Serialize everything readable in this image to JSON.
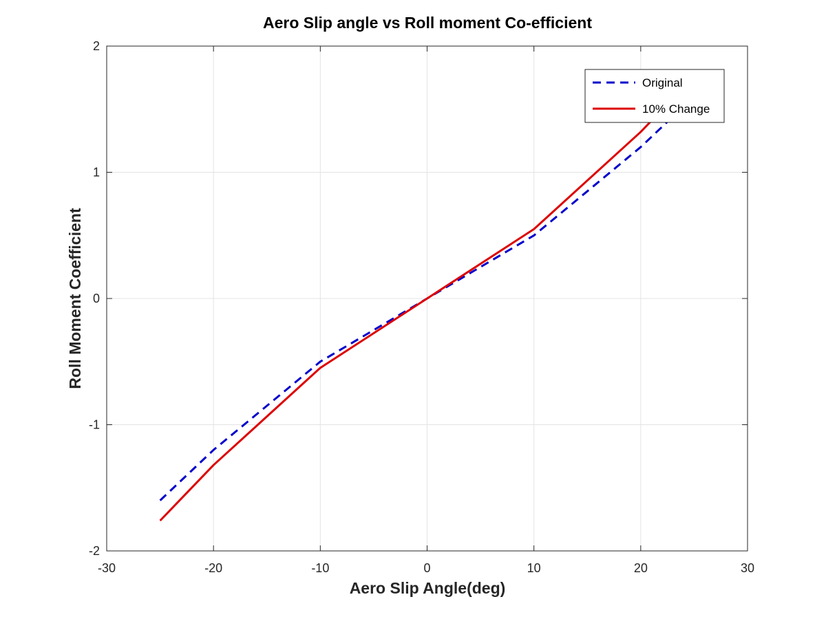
{
  "chart_data": {
    "type": "line",
    "title": "Aero Slip angle vs Roll moment Co-efficient",
    "xlabel": "Aero Slip Angle(deg)",
    "ylabel": "Roll Moment Coefficient",
    "xlim": [
      -30,
      30
    ],
    "ylim": [
      -2,
      2
    ],
    "xticks": [
      -30,
      -20,
      -10,
      0,
      10,
      20,
      30
    ],
    "yticks": [
      -2,
      -1,
      0,
      1,
      2
    ],
    "grid": true,
    "legend_position": "top-right",
    "series": [
      {
        "name": "Original",
        "style": "dashed",
        "color": "#0000cc",
        "x": [
          -25,
          -20,
          -10,
          0,
          10,
          20,
          25
        ],
        "y": [
          -1.6,
          -1.2,
          -0.5,
          0,
          0.5,
          1.2,
          1.6
        ]
      },
      {
        "name": "10% Change",
        "style": "solid",
        "color": "#dd0000",
        "x": [
          -25,
          -20,
          -10,
          0,
          10,
          20,
          25
        ],
        "y": [
          -1.76,
          -1.32,
          -0.55,
          0,
          0.55,
          1.32,
          1.76
        ]
      }
    ]
  }
}
